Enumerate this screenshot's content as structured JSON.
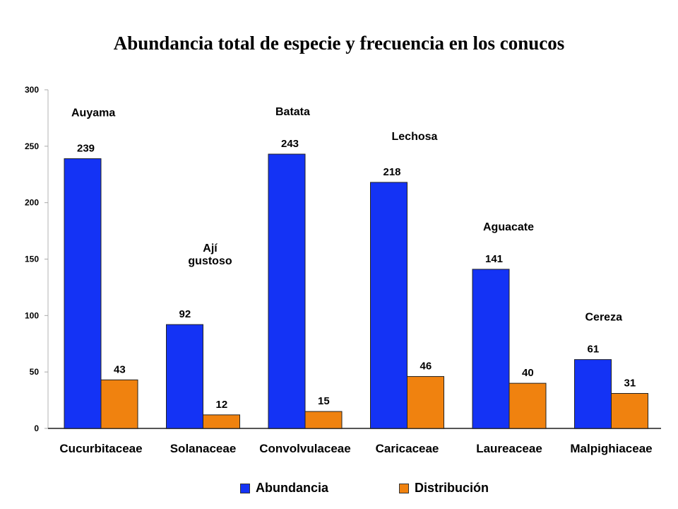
{
  "chart_data": {
    "type": "bar",
    "title": "Abundancia total de especie y frecuencia en los conucos",
    "categories": [
      "Cucurbitaceae",
      "Solanaceae",
      "Convolvulaceae",
      "Caricaceae",
      "Laureaceae",
      "Malpighiaceae"
    ],
    "series": [
      {
        "name": "Abundancia",
        "color": "#1433f5",
        "values": [
          239,
          92,
          243,
          218,
          141,
          61
        ]
      },
      {
        "name": "Distribución",
        "color": "#f0820f",
        "values": [
          43,
          12,
          15,
          46,
          40,
          31
        ]
      }
    ],
    "annotations": [
      "Auyama",
      "Ají gustoso",
      "Batata",
      "Lechosa",
      "Aguacate",
      "Cereza"
    ],
    "ylim": [
      0,
      300
    ],
    "yticks": [
      0,
      50,
      100,
      150,
      200,
      250,
      300
    ],
    "grid": false,
    "legend_position": "bottom"
  }
}
